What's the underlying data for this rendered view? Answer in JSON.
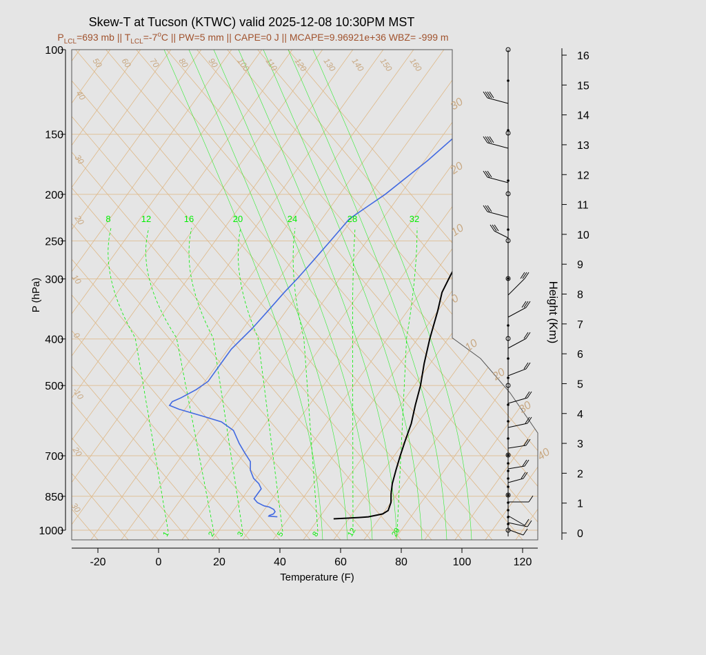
{
  "title": "Skew-T at Tucson (KTWC) valid 2025-12-08 10:30PM MST",
  "subtitle": {
    "p_lcl_main": "P",
    "p_lcl_sub": "LCL",
    "p_lcl_rest": "=693 mb || T",
    "t_lcl_sub": "LCL",
    "t_lcl_rest": "=-7",
    "deg_sup": "o",
    "rest": "C || PW=5 mm || CAPE=0 J || MCAPE=9.96921e+36 WBZ= -999 m"
  },
  "colors": {
    "background": "#e5e5e5",
    "isotherm_adiabat": "#deb887",
    "isobar": "#deb887",
    "mixing_ratio": "#00ee00",
    "temperature": "#000000",
    "dewpoint": "#4169e1",
    "subtitle": "#a0522d"
  },
  "chart_data": {
    "type": "line",
    "title": "Skew-T at Tucson (KTWC) valid 2025-12-08 10:30PM MST",
    "xlabel": "Temperature (F)",
    "ylabel": "P (hPa)",
    "y2label": "Height (Km)",
    "x_ticks": [
      "-20",
      "0",
      "20",
      "40",
      "60",
      "80",
      "100",
      "120"
    ],
    "y_ticks": [
      "100",
      "150",
      "200",
      "250",
      "300",
      "400",
      "500",
      "700",
      "850",
      "1000"
    ],
    "height_ticks": [
      "0",
      "1",
      "2",
      "3",
      "4",
      "5",
      "6",
      "7",
      "8",
      "9",
      "10",
      "11",
      "12",
      "13",
      "14",
      "15",
      "16"
    ],
    "isotherm_labels": [
      "50",
      "60",
      "70",
      "80",
      "90",
      "100",
      "110",
      "120",
      "130",
      "140",
      "150",
      "160"
    ],
    "left_skew_labels": [
      "40",
      "30",
      "20",
      "10",
      "0",
      "-10",
      "20",
      "30"
    ],
    "right_skew_labels": [
      "30",
      "20",
      "10",
      "0",
      "10",
      "20",
      "30",
      "40"
    ],
    "mixing_ratio_top": [
      "8",
      "12",
      "16",
      "20",
      "24",
      "28",
      "32"
    ],
    "mixing_ratio_bottom": [
      "1",
      "2",
      "3",
      "5",
      "8",
      "12",
      "20"
    ],
    "series": [
      {
        "name": "Temperature",
        "points_p_tf": [
          [
            947,
            55
          ],
          [
            941,
            63
          ],
          [
            938,
            66
          ],
          [
            925,
            70
          ],
          [
            910,
            71
          ],
          [
            875,
            70
          ],
          [
            840,
            68
          ],
          [
            800,
            66
          ],
          [
            750,
            64
          ],
          [
            700,
            62
          ],
          [
            650,
            60
          ],
          [
            600,
            58
          ],
          [
            550,
            55
          ],
          [
            500,
            52
          ],
          [
            450,
            48
          ],
          [
            400,
            44
          ],
          [
            350,
            40
          ],
          [
            320,
            37
          ],
          [
            300,
            36
          ],
          [
            280,
            35
          ],
          [
            260,
            34
          ],
          [
            240,
            34
          ],
          [
            220,
            33
          ],
          [
            200,
            33
          ],
          [
            180,
            33
          ],
          [
            160,
            34
          ],
          [
            135,
            36
          ],
          [
            115,
            40
          ],
          [
            100,
            44
          ]
        ]
      },
      {
        "name": "Dewpoint",
        "points_p_tf": [
          [
            938,
            36
          ],
          [
            935,
            33
          ],
          [
            932,
            33
          ],
          [
            925,
            34
          ],
          [
            915,
            34
          ],
          [
            905,
            33
          ],
          [
            895,
            31
          ],
          [
            890,
            29
          ],
          [
            876,
            26
          ],
          [
            860,
            24
          ],
          [
            845,
            24
          ],
          [
            820,
            24
          ],
          [
            800,
            22
          ],
          [
            780,
            19
          ],
          [
            750,
            16
          ],
          [
            720,
            14
          ],
          [
            690,
            10
          ],
          [
            660,
            6
          ],
          [
            620,
            1
          ],
          [
            595,
            -5
          ],
          [
            580,
            -12
          ],
          [
            560,
            -22
          ],
          [
            550,
            -26
          ],
          [
            540,
            -26
          ],
          [
            530,
            -24
          ],
          [
            510,
            -21
          ],
          [
            490,
            -19
          ],
          [
            465,
            -19
          ],
          [
            440,
            -19
          ],
          [
            420,
            -19
          ],
          [
            400,
            -18
          ],
          [
            380,
            -17
          ],
          [
            350,
            -16
          ],
          [
            320,
            -15
          ],
          [
            300,
            -14
          ],
          [
            275,
            -13
          ],
          [
            250,
            -12
          ],
          [
            225,
            -11
          ],
          [
            212,
            -8
          ],
          [
            200,
            -5
          ],
          [
            170,
            1
          ],
          [
            138,
            7
          ],
          [
            122,
            13
          ],
          [
            100,
            26
          ]
        ]
      }
    ]
  }
}
